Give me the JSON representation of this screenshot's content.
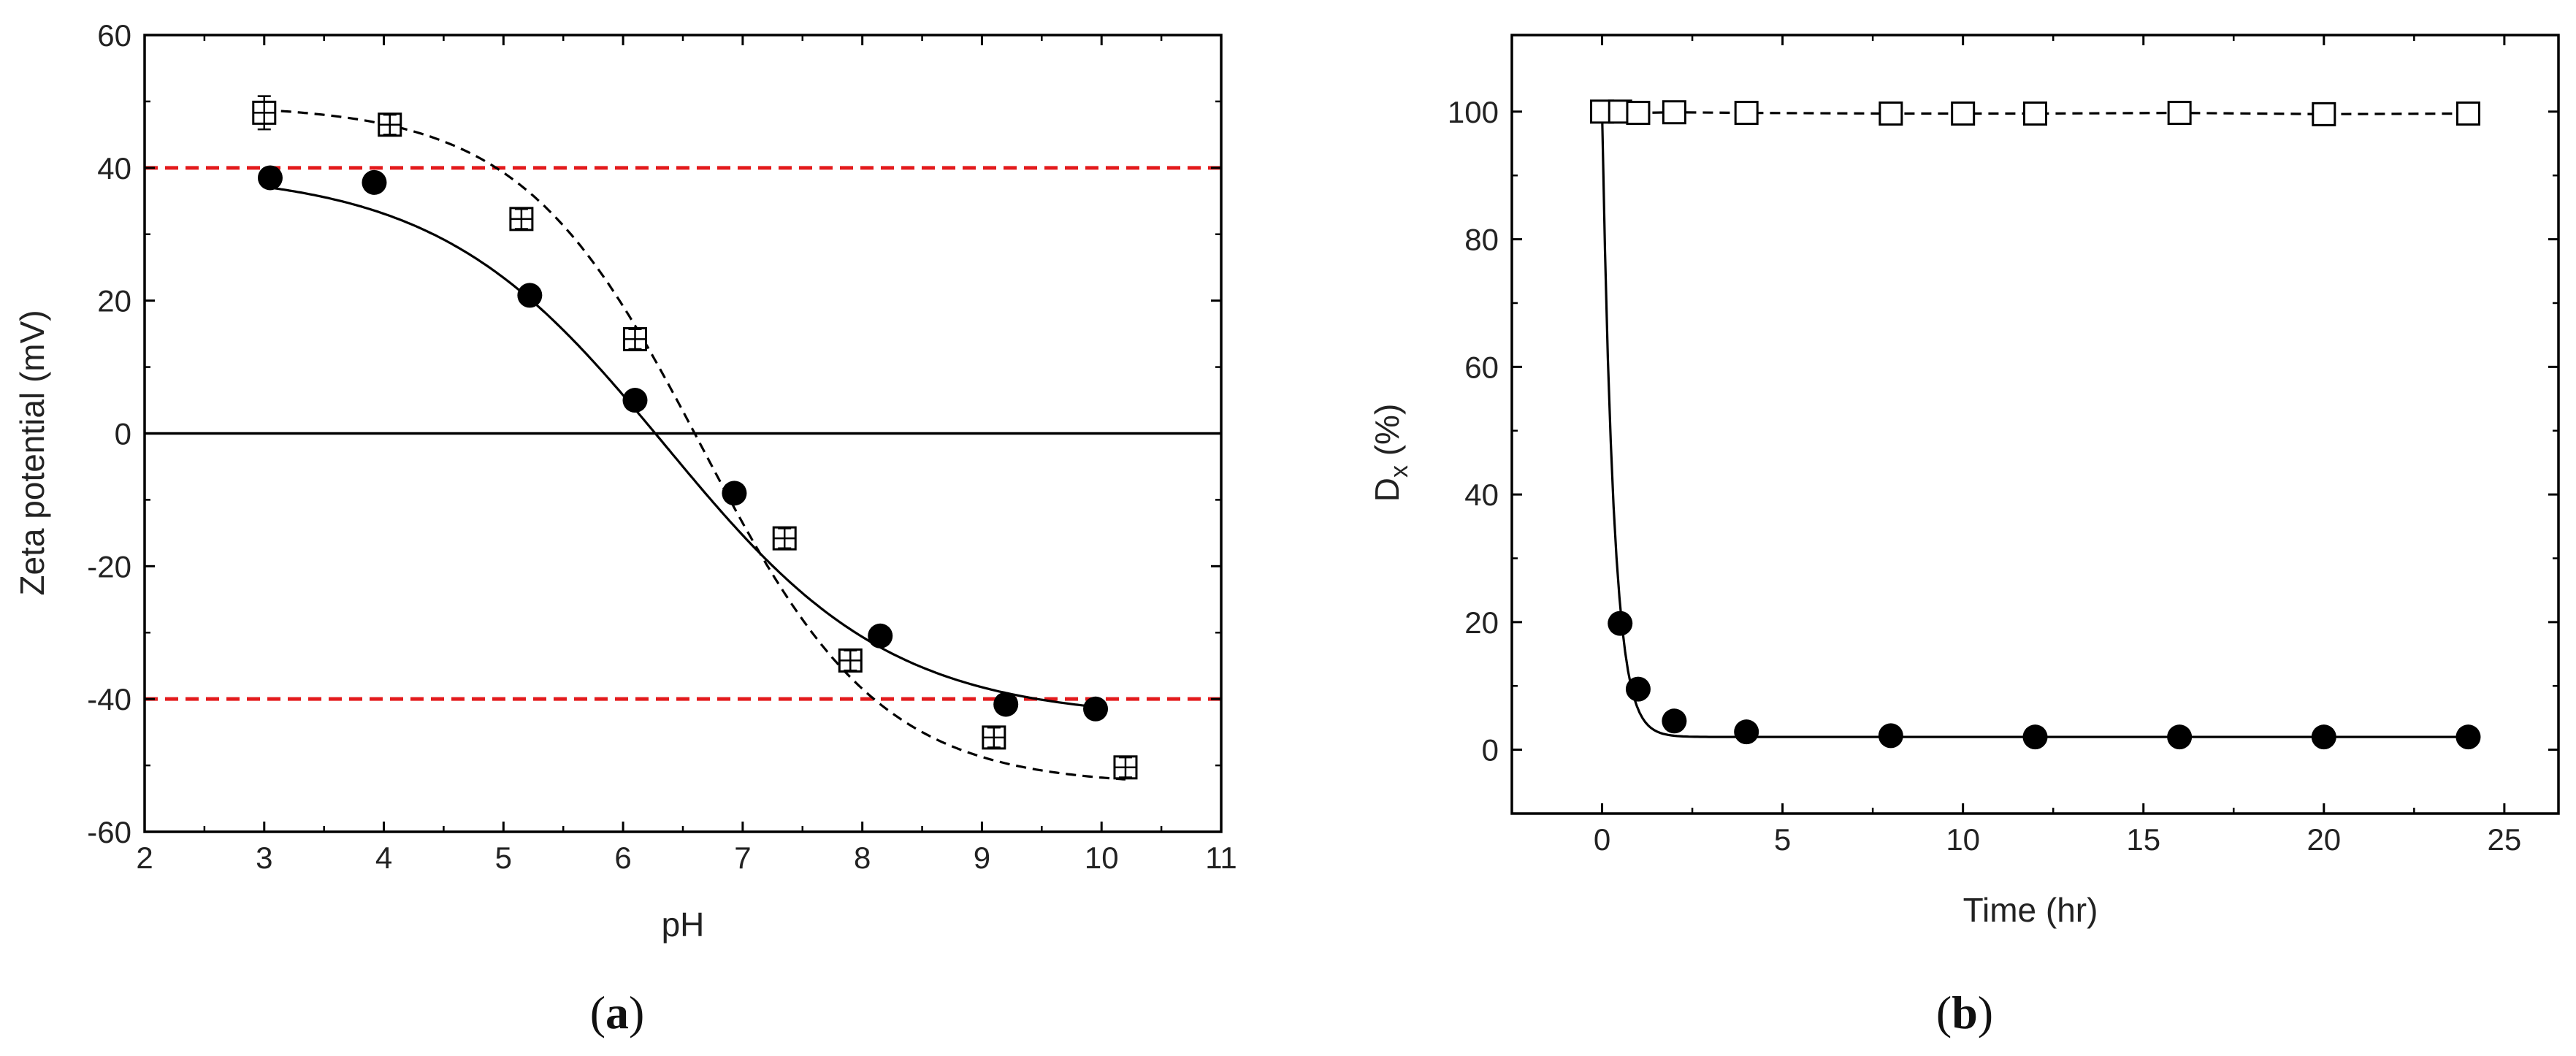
{
  "chart_data": [
    {
      "panel": "(a)",
      "panel_letter": "a",
      "type": "scatter",
      "xlabel": "pH",
      "ylabel": "Zeta potential (mV)",
      "xlim": [
        2,
        11
      ],
      "ylim": [
        -60,
        60
      ],
      "xticks": [
        2,
        3,
        4,
        5,
        6,
        7,
        8,
        9,
        10,
        11
      ],
      "yticks": [
        -60,
        -40,
        -20,
        0,
        20,
        40,
        60
      ],
      "reference_lines": [
        {
          "y": 40,
          "style": "dashed",
          "color": "#e31a1c"
        },
        {
          "y": -40,
          "style": "dashed",
          "color": "#e31a1c"
        },
        {
          "y": 0,
          "style": "solid",
          "color": "#000000"
        }
      ],
      "series": [
        {
          "marker": "filled-circle",
          "line": "solid",
          "x": [
            3.05,
            3.92,
            5.22,
            6.1,
            6.93,
            8.15,
            9.2,
            9.95
          ],
          "y": [
            38.5,
            37.8,
            20.8,
            5.0,
            -9.0,
            -30.5,
            -40.8,
            -41.5
          ],
          "fit": {
            "type": "sigmoid",
            "A1": 39.5,
            "A2": -43.0,
            "x0": 6.35,
            "dx": 0.95
          }
        },
        {
          "marker": "open-square",
          "line": "dashed",
          "x": [
            3.0,
            4.05,
            5.15,
            6.1,
            7.35,
            7.9,
            9.1,
            10.2
          ],
          "y": [
            48.3,
            46.5,
            32.3,
            14.2,
            -15.8,
            -34.2,
            -45.8,
            -50.3
          ],
          "yerr": [
            2.5,
            1.5,
            1.5,
            1.5,
            1.5,
            1.5,
            1.5,
            1.5
          ],
          "fit": {
            "type": "sigmoid",
            "A1": 49.5,
            "A2": -53.0,
            "x0": 6.65,
            "dx": 0.75
          }
        }
      ]
    },
    {
      "panel": "(b)",
      "panel_letter": "b",
      "type": "scatter",
      "xlabel": "Time (hr)",
      "ylabel_main": "D",
      "ylabel_sub": "x",
      "ylabel_tail": " (%)",
      "xlim": [
        -2.5,
        26.5
      ],
      "ylim": [
        -10,
        112
      ],
      "xticks": [
        0,
        5,
        10,
        15,
        20,
        25
      ],
      "yticks": [
        0,
        20,
        40,
        60,
        80,
        100
      ],
      "series": [
        {
          "marker": "filled-circle",
          "line": "solid",
          "x": [
            0.5,
            1,
            2,
            4,
            8,
            12,
            16,
            20,
            24
          ],
          "y": [
            19.8,
            9.5,
            4.5,
            2.8,
            2.2,
            2.0,
            2.0,
            2.0,
            2.0
          ],
          "fit": {
            "type": "exp-decay",
            "start_x": 0,
            "start_y": 100,
            "base": 2.0,
            "tau": 0.32
          }
        },
        {
          "marker": "open-square",
          "line": "dashed",
          "x": [
            0,
            0.5,
            1,
            2,
            4,
            8,
            10,
            12,
            16,
            20,
            24
          ],
          "y": [
            100,
            100,
            99.8,
            99.9,
            99.8,
            99.7,
            99.7,
            99.7,
            99.8,
            99.6,
            99.7
          ]
        }
      ]
    }
  ]
}
